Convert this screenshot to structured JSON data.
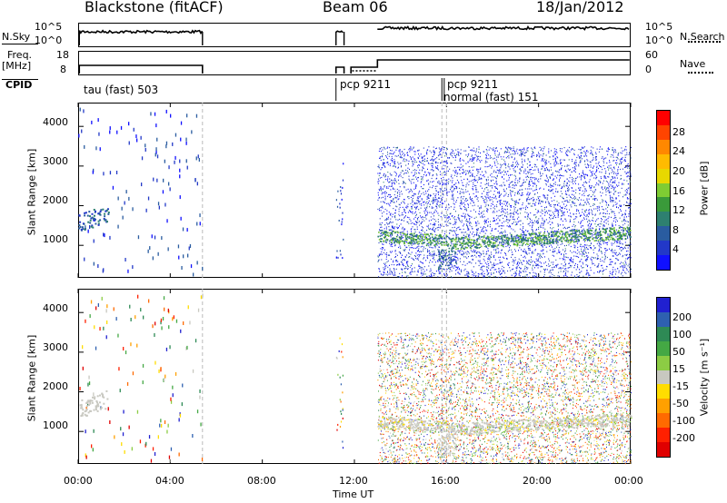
{
  "header": {
    "station": "Blackstone (fitACF)",
    "beam": "Beam 06",
    "date": "18/Jan/2012"
  },
  "strip": {
    "nsky_label": "N.Sky",
    "nsky_ticks": [
      "10^5",
      "10^0"
    ],
    "nsearch_label": "N.Search",
    "nsearch_ticks": [
      "10^5",
      "10^0"
    ],
    "freq_label_1": "Freq.",
    "freq_label_2": "[MHz]",
    "freq_ticks": [
      "18",
      "8"
    ],
    "nave_label": "Nave",
    "nave_ticks": [
      "60",
      "0"
    ],
    "cpid_label": "CPID",
    "cpid_modes": [
      "tau (fast) 503",
      "pcp 9211",
      "pcp 9211",
      "normal (fast) 151"
    ]
  },
  "axes": {
    "xlabel": "Time UT",
    "x_ticks": [
      "00:00",
      "04:00",
      "08:00",
      "12:00",
      "16:00",
      "20:00",
      "00:00"
    ],
    "ylabel_top": "Slant Range [km]",
    "ylabel_bottom": "Slant Range [km]",
    "y_ticks": [
      "4000",
      "3000",
      "2000",
      "1000"
    ]
  },
  "colorbars": {
    "power": {
      "label": "Power [dB]",
      "ticks": [
        "28",
        "24",
        "20",
        "16",
        "12",
        "8",
        "4"
      ],
      "colors": [
        "#ff0000",
        "#ff4400",
        "#ff8800",
        "#ffbb00",
        "#e8d800",
        "#7fcc33",
        "#3a9a3a",
        "#2e8070",
        "#2a5ca0",
        "#2238c8",
        "#1010ff"
      ]
    },
    "velocity": {
      "label": "Velocity [m s⁻¹]",
      "ticks": [
        "200",
        "100",
        "50",
        "15",
        "-15",
        "-50",
        "-100",
        "-200"
      ],
      "colors": [
        "#2020d0",
        "#2e60b0",
        "#2e8a55",
        "#44a844",
        "#8ccc44",
        "#c8c8c0",
        "#ffdd00",
        "#ffa000",
        "#ff6a00",
        "#ff2000",
        "#e00000"
      ]
    }
  },
  "chart_data": {
    "type": "heatmap",
    "title": "Blackstone (fitACF) Beam 06 18/Jan/2012",
    "xlabel": "Time UT",
    "ylabel": "Slant Range [km]",
    "xlim": [
      "00:00",
      "24:00"
    ],
    "ylim": [
      180,
      4600
    ],
    "panels": [
      "Power [dB]",
      "Velocity [m s⁻¹]"
    ],
    "data_intervals_ut": [
      [
        0.0,
        5.4
      ],
      [
        11.2,
        11.55
      ],
      [
        12.95,
        24.0
      ]
    ],
    "scatter_band_km": [
      [
        0.0,
        1.5,
        1500
      ],
      [
        13.0,
        16.0,
        1200
      ],
      [
        16.5,
        24.0,
        1250
      ]
    ],
    "beam": 6,
    "date": "18/Jan/2012"
  }
}
